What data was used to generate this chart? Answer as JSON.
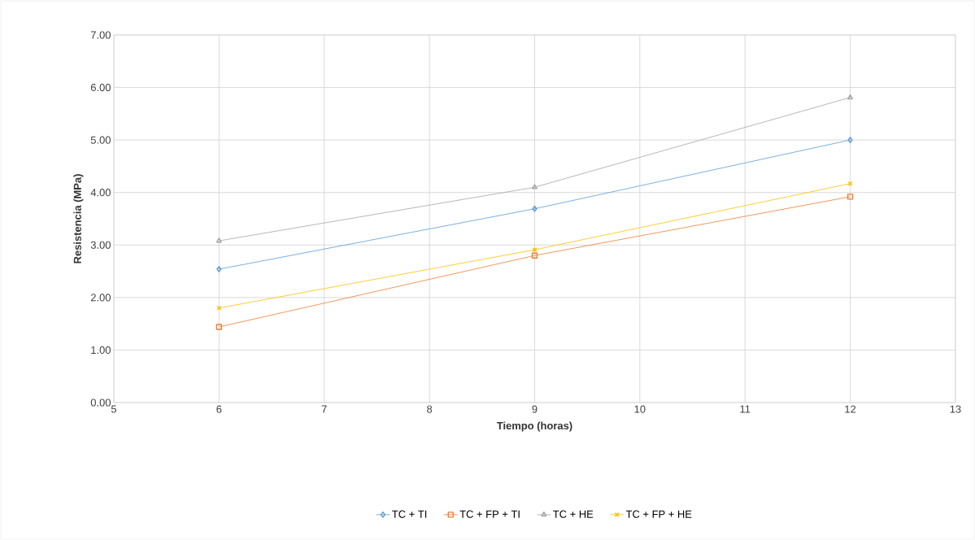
{
  "chart_data": {
    "type": "line",
    "xlabel": "Tiempo (horas)",
    "ylabel": "Resistencia (MPa)",
    "x": [
      6,
      9,
      12
    ],
    "series": [
      {
        "name": "TC + TI",
        "color": "#5b9bd5",
        "marker": "diamond",
        "values": [
          2.54,
          3.69,
          5.0
        ]
      },
      {
        "name": "TC + FP + TI",
        "color": "#ed7d31",
        "marker": "square",
        "values": [
          1.44,
          2.8,
          3.92
        ]
      },
      {
        "name": "TC + HE",
        "color": "#a5a5a5",
        "marker": "triangle",
        "values": [
          3.08,
          4.1,
          5.81
        ]
      },
      {
        "name": "TC + FP + HE",
        "color": "#ffc000",
        "marker": "cross",
        "values": [
          1.8,
          2.91,
          4.17
        ]
      }
    ],
    "xlim": [
      5,
      13
    ],
    "xticks": [
      5,
      6,
      7,
      8,
      9,
      10,
      11,
      12,
      13
    ],
    "ylim": [
      0,
      7
    ],
    "yticks": [
      {
        "value": 0,
        "label": "0.00"
      },
      {
        "value": 1,
        "label": "1.00"
      },
      {
        "value": 2,
        "label": "2.00"
      },
      {
        "value": 3,
        "label": "3.00"
      },
      {
        "value": 4,
        "label": "4.00"
      },
      {
        "value": 5,
        "label": "5.00"
      },
      {
        "value": 6,
        "label": "6.00"
      },
      {
        "value": 7,
        "label": "7.00"
      }
    ],
    "grid": true,
    "legend": "bottom"
  }
}
